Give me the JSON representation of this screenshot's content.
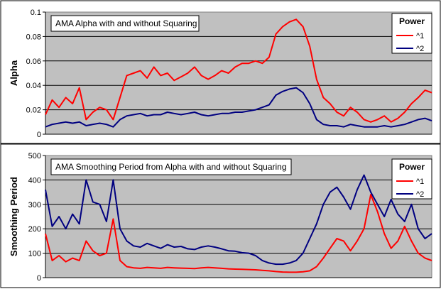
{
  "chart_data": [
    {
      "type": "line",
      "title": "AMA Alpha with and without Squaring",
      "ylabel": "Alpha",
      "xlabel": "",
      "ylim": [
        0,
        0.1
      ],
      "yticks": [
        "0",
        "0.02",
        "0.04",
        "0.06",
        "0.08",
        "0.1"
      ],
      "grid": true,
      "legend": {
        "title": "Power",
        "placement": "top-right"
      },
      "x": [
        0,
        10,
        20,
        30,
        40,
        50,
        60,
        70,
        80,
        90,
        100,
        110,
        120,
        130,
        140,
        150,
        160,
        170,
        180,
        190,
        200,
        210,
        220,
        230,
        240,
        250,
        260,
        270,
        280,
        290,
        300,
        310,
        320,
        330,
        340,
        350,
        360,
        370,
        380,
        390,
        400,
        410,
        420,
        430,
        440,
        450,
        460,
        470,
        480,
        490,
        500,
        510,
        520,
        530,
        540,
        550,
        560,
        570
      ],
      "series": [
        {
          "name": "^1",
          "color": "#ff0000",
          "values": [
            0.016,
            0.028,
            0.022,
            0.03,
            0.025,
            0.038,
            0.012,
            0.018,
            0.022,
            0.02,
            0.012,
            0.03,
            0.048,
            0.05,
            0.052,
            0.046,
            0.055,
            0.048,
            0.05,
            0.044,
            0.047,
            0.05,
            0.055,
            0.048,
            0.045,
            0.048,
            0.052,
            0.05,
            0.055,
            0.058,
            0.058,
            0.06,
            0.058,
            0.063,
            0.082,
            0.088,
            0.092,
            0.094,
            0.088,
            0.072,
            0.045,
            0.03,
            0.025,
            0.018,
            0.015,
            0.022,
            0.018,
            0.012,
            0.01,
            0.012,
            0.015,
            0.01,
            0.013,
            0.018,
            0.025,
            0.03,
            0.036,
            0.034
          ]
        },
        {
          "name": "^2",
          "color": "#000080",
          "values": [
            0.006,
            0.008,
            0.009,
            0.01,
            0.009,
            0.01,
            0.007,
            0.008,
            0.009,
            0.008,
            0.006,
            0.012,
            0.015,
            0.016,
            0.017,
            0.015,
            0.016,
            0.016,
            0.018,
            0.017,
            0.016,
            0.017,
            0.018,
            0.016,
            0.015,
            0.016,
            0.017,
            0.017,
            0.018,
            0.018,
            0.019,
            0.02,
            0.022,
            0.024,
            0.032,
            0.035,
            0.037,
            0.038,
            0.034,
            0.025,
            0.012,
            0.008,
            0.007,
            0.007,
            0.006,
            0.008,
            0.007,
            0.006,
            0.006,
            0.006,
            0.007,
            0.006,
            0.007,
            0.008,
            0.01,
            0.012,
            0.013,
            0.011
          ]
        }
      ]
    },
    {
      "type": "line",
      "title": "AMA Smoothing Period from Alpha with and without Squaring",
      "ylabel": "Smoothing Period",
      "xlabel": "",
      "ylim": [
        0,
        500
      ],
      "yticks": [
        "0",
        "100",
        "200",
        "300",
        "400",
        "500"
      ],
      "grid": true,
      "legend": {
        "title": "Power",
        "placement": "top-right"
      },
      "x": [
        0,
        10,
        20,
        30,
        40,
        50,
        60,
        70,
        80,
        90,
        100,
        110,
        120,
        130,
        140,
        150,
        160,
        170,
        180,
        190,
        200,
        210,
        220,
        230,
        240,
        250,
        260,
        270,
        280,
        290,
        300,
        310,
        320,
        330,
        340,
        350,
        360,
        370,
        380,
        390,
        400,
        410,
        420,
        430,
        440,
        450,
        460,
        470,
        480,
        490,
        500,
        510,
        520,
        530,
        540,
        550,
        560,
        570
      ],
      "series": [
        {
          "name": "^1",
          "color": "#ff0000",
          "values": [
            180,
            70,
            90,
            65,
            80,
            70,
            150,
            110,
            90,
            100,
            240,
            70,
            45,
            40,
            38,
            42,
            40,
            38,
            42,
            40,
            39,
            38,
            37,
            40,
            42,
            40,
            38,
            36,
            35,
            34,
            33,
            32,
            30,
            28,
            25,
            23,
            22,
            22,
            24,
            28,
            45,
            80,
            120,
            160,
            150,
            110,
            150,
            200,
            340,
            270,
            180,
            120,
            150,
            210,
            150,
            100,
            80,
            70
          ]
        },
        {
          "name": "^2",
          "color": "#000080",
          "values": [
            360,
            210,
            250,
            200,
            260,
            220,
            400,
            310,
            300,
            230,
            400,
            200,
            150,
            130,
            125,
            140,
            130,
            120,
            135,
            125,
            128,
            118,
            115,
            125,
            130,
            125,
            118,
            110,
            108,
            102,
            100,
            90,
            70,
            60,
            55,
            55,
            60,
            70,
            100,
            160,
            220,
            300,
            350,
            370,
            330,
            280,
            360,
            420,
            350,
            300,
            250,
            320,
            260,
            230,
            300,
            200,
            160,
            180
          ]
        }
      ]
    }
  ]
}
